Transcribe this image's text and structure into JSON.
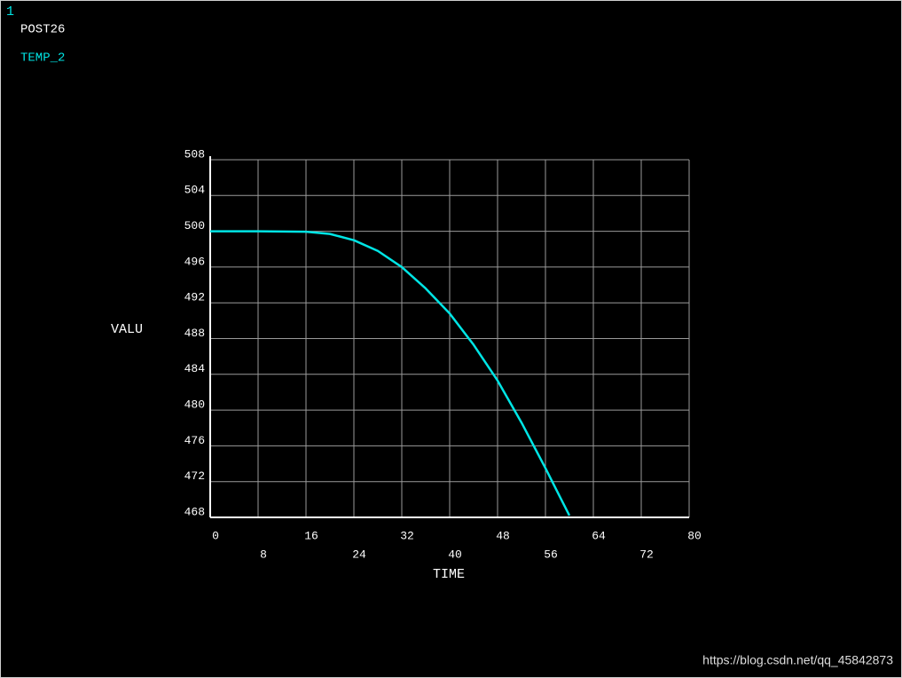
{
  "window_number": "1",
  "chart_data": {
    "type": "line",
    "title": "POST26",
    "x": [
      0,
      8,
      16,
      20,
      24,
      28,
      32,
      36,
      40,
      44,
      48,
      52,
      56,
      60
    ],
    "series": [
      {
        "name": "TEMP_2",
        "color": "#00e5e5",
        "values": [
          500,
          500,
          499.95,
          499.7,
          499.0,
          497.8,
          496.0,
          493.6,
          490.8,
          487.3,
          483.3,
          478.6,
          473.5,
          468.2
        ]
      }
    ],
    "xlabel": "TIME",
    "ylabel": "VALU",
    "xlim": [
      0,
      80
    ],
    "xticks": [
      0,
      8,
      16,
      24,
      32,
      40,
      48,
      56,
      64,
      72,
      80
    ],
    "ylim": [
      468,
      508
    ],
    "yticks": [
      468,
      472,
      476,
      480,
      484,
      488,
      492,
      496,
      500,
      504,
      508
    ],
    "grid": true
  },
  "watermark": "https://blog.csdn.net/qq_45842873"
}
